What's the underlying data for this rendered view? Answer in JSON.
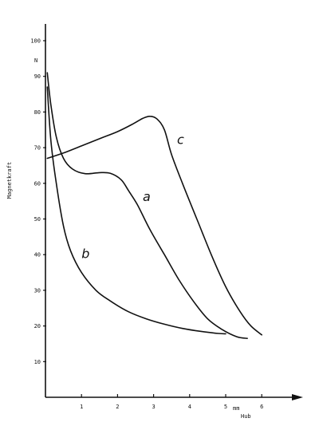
{
  "chart_data": {
    "type": "line",
    "xlabel": "Hub",
    "x_unit": "mm",
    "ylabel": "Magnetkraft",
    "y_unit": "N",
    "xlim": [
      0,
      7
    ],
    "ylim": [
      0,
      100
    ],
    "x_ticks": [
      {
        "value": 1,
        "label": "1"
      },
      {
        "value": 2,
        "label": "2"
      },
      {
        "value": 3,
        "label": "3"
      },
      {
        "value": 4,
        "label": "4"
      },
      {
        "value": 5,
        "label": "5"
      },
      {
        "value": 6,
        "label": "6"
      }
    ],
    "y_ticks": [
      {
        "value": 10,
        "label": "10"
      },
      {
        "value": 20,
        "label": "20"
      },
      {
        "value": 30,
        "label": "30"
      },
      {
        "value": 40,
        "label": "40"
      },
      {
        "value": 50,
        "label": "50"
      },
      {
        "value": 60,
        "label": "60"
      },
      {
        "value": 70,
        "label": "70"
      },
      {
        "value": 80,
        "label": "80"
      },
      {
        "value": 90,
        "label": "90"
      },
      {
        "value": 100,
        "label": "100"
      }
    ],
    "grid": false,
    "legend": "none",
    "series": [
      {
        "name": "a",
        "label_at": [
          2.7,
          55
        ],
        "points": [
          [
            0.05,
            91
          ],
          [
            0.15,
            82
          ],
          [
            0.3,
            73
          ],
          [
            0.5,
            67
          ],
          [
            0.75,
            64
          ],
          [
            1.1,
            62.7
          ],
          [
            1.5,
            63
          ],
          [
            1.8,
            62.8
          ],
          [
            2.1,
            61
          ],
          [
            2.3,
            58
          ],
          [
            2.55,
            54
          ],
          [
            2.9,
            47
          ],
          [
            3.3,
            40
          ],
          [
            3.7,
            33
          ],
          [
            4.1,
            27
          ],
          [
            4.5,
            22
          ],
          [
            4.9,
            19
          ],
          [
            5.3,
            17
          ],
          [
            5.6,
            16.5
          ]
        ]
      },
      {
        "name": "b",
        "label_at": [
          1.0,
          39
        ],
        "points": [
          [
            0.05,
            87
          ],
          [
            0.15,
            72
          ],
          [
            0.3,
            60
          ],
          [
            0.5,
            48
          ],
          [
            0.7,
            41
          ],
          [
            1.0,
            35
          ],
          [
            1.4,
            30
          ],
          [
            1.8,
            27
          ],
          [
            2.3,
            24
          ],
          [
            2.8,
            22
          ],
          [
            3.3,
            20.5
          ],
          [
            3.8,
            19.3
          ],
          [
            4.3,
            18.5
          ],
          [
            4.8,
            17.9
          ],
          [
            5.0,
            17.8
          ]
        ]
      },
      {
        "name": "c",
        "label_at": [
          3.65,
          71
        ],
        "points": [
          [
            0.05,
            67
          ],
          [
            0.5,
            68.5
          ],
          [
            1.0,
            70.5
          ],
          [
            1.5,
            72.5
          ],
          [
            2.0,
            74.5
          ],
          [
            2.4,
            76.5
          ],
          [
            2.7,
            78.2
          ],
          [
            2.9,
            78.8
          ],
          [
            3.1,
            78
          ],
          [
            3.3,
            75
          ],
          [
            3.5,
            68
          ],
          [
            3.8,
            60
          ],
          [
            4.2,
            50
          ],
          [
            4.6,
            40
          ],
          [
            5.0,
            31
          ],
          [
            5.4,
            24
          ],
          [
            5.7,
            20
          ],
          [
            6.0,
            17.5
          ]
        ]
      }
    ]
  }
}
